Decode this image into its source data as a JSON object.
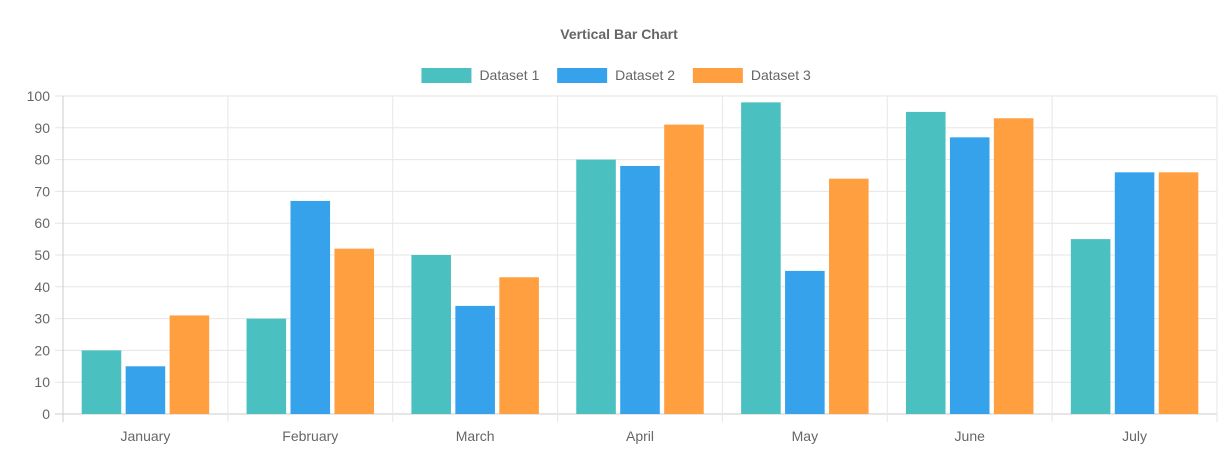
{
  "chart_data": {
    "type": "bar",
    "title": "Vertical Bar Chart",
    "categories": [
      "January",
      "February",
      "March",
      "April",
      "May",
      "June",
      "July"
    ],
    "series": [
      {
        "name": "Dataset 1",
        "color": "#4bc0c0",
        "values": [
          20,
          30,
          50,
          80,
          98,
          95,
          55
        ]
      },
      {
        "name": "Dataset 2",
        "color": "#36a2eb",
        "values": [
          15,
          67,
          34,
          78,
          45,
          87,
          76
        ]
      },
      {
        "name": "Dataset 3",
        "color": "#ff9f40",
        "values": [
          31,
          52,
          43,
          91,
          74,
          93,
          76
        ]
      }
    ],
    "ylim": [
      0,
      100
    ],
    "yticks": [
      0,
      10,
      20,
      30,
      40,
      50,
      60,
      70,
      80,
      90,
      100
    ],
    "legend_position": "top",
    "grid": true
  }
}
